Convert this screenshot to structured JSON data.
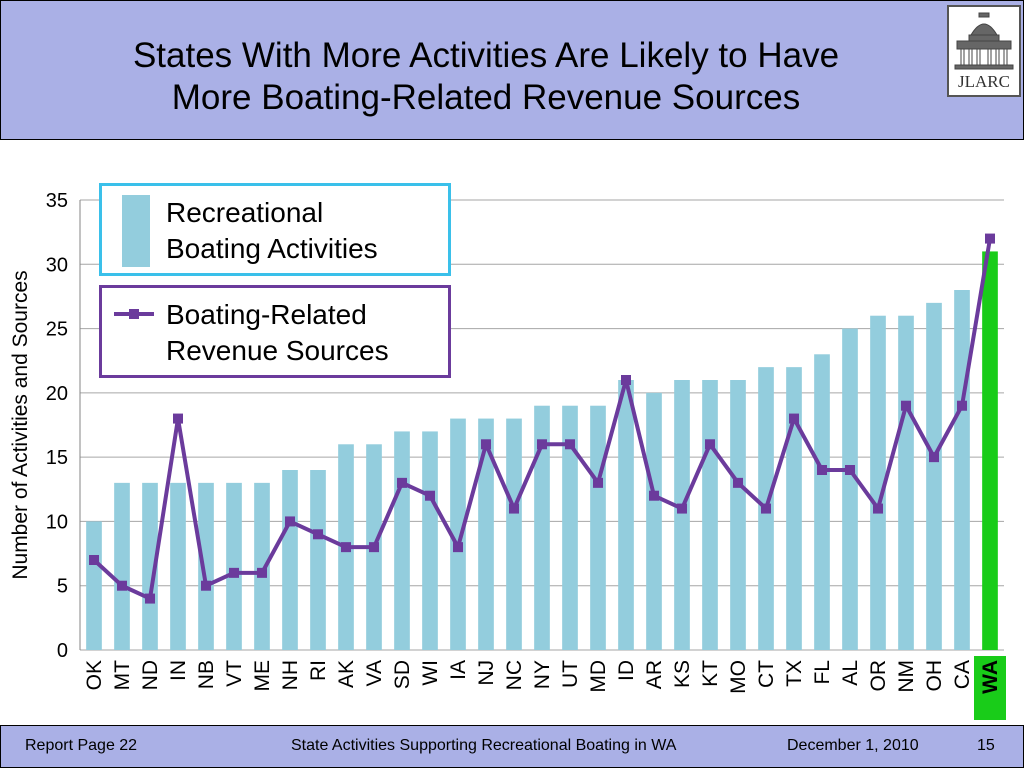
{
  "header": {
    "title_line1": "States With More Activities Are Likely to Have",
    "title_line2": "More Boating-Related Revenue Sources",
    "logo_text": "JLARC"
  },
  "footer": {
    "left": "Report Page 22",
    "center": "State Activities Supporting Recreational Boating in WA",
    "date": "December 1, 2010",
    "page": "15"
  },
  "colors": {
    "header_bg": "#aab0e6",
    "bar": "#93cddd",
    "bar_highlight": "#19cc19",
    "line": "#6b3b9c"
  },
  "chart_data": {
    "type": "bar",
    "categories": [
      "OK",
      "MT",
      "ND",
      "IN",
      "NB",
      "VT",
      "ME",
      "NH",
      "RI",
      "AK",
      "VA",
      "SD",
      "WI",
      "IA",
      "NJ",
      "NC",
      "NY",
      "UT",
      "MD",
      "ID",
      "AR",
      "KS",
      "KT",
      "MO",
      "CT",
      "TX",
      "FL",
      "AL",
      "OR",
      "NM",
      "OH",
      "CA",
      "WA"
    ],
    "series": [
      {
        "name": "Recreational Boating Activities",
        "type": "bar",
        "values": [
          10,
          13,
          13,
          13,
          13,
          13,
          13,
          14,
          14,
          16,
          16,
          17,
          17,
          18,
          18,
          18,
          19,
          19,
          19,
          21,
          20,
          21,
          21,
          21,
          22,
          22,
          23,
          25,
          26,
          26,
          27,
          28,
          31
        ]
      },
      {
        "name": "Boating-Related Revenue Sources",
        "type": "line",
        "values": [
          7,
          5,
          4,
          18,
          5,
          6,
          6,
          10,
          9,
          8,
          8,
          13,
          12,
          8,
          16,
          11,
          16,
          16,
          13,
          21,
          12,
          11,
          16,
          13,
          11,
          18,
          14,
          14,
          11,
          19,
          15,
          19,
          32
        ]
      }
    ],
    "highlight_category": "WA",
    "legend_bar_lines": [
      "Recreational",
      "Boating Activities"
    ],
    "legend_line_lines": [
      "Boating-Related",
      "Revenue Sources"
    ],
    "ylabel": "Number of Activities and Sources",
    "ylim": [
      0,
      35
    ],
    "yticks": [
      0,
      5,
      10,
      15,
      20,
      25,
      30,
      35
    ],
    "grid": true,
    "legend_position": "top-left"
  }
}
